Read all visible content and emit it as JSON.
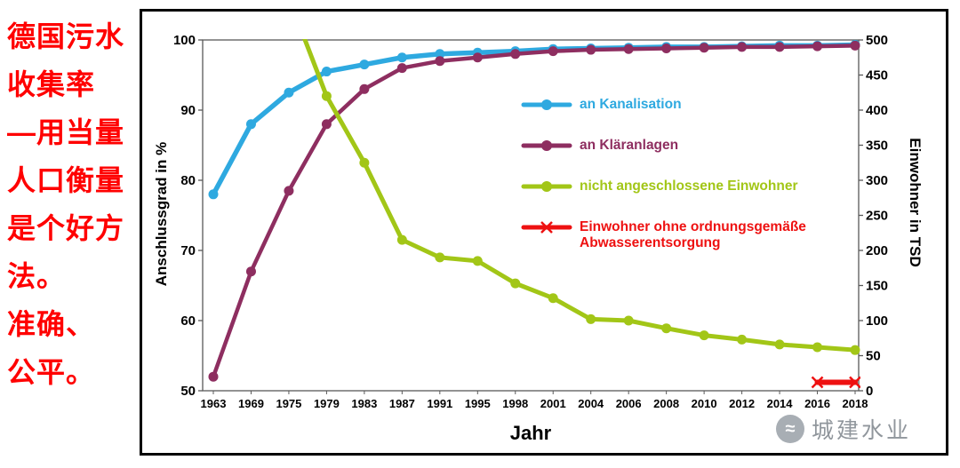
{
  "side_note": {
    "color": "#ff0000",
    "lines": [
      "德国污水",
      "收集率",
      "—用当量",
      "人口衡量",
      "是个好方",
      "法。",
      "准确、",
      "公平。"
    ]
  },
  "chart_data": {
    "type": "line",
    "title": "",
    "xlabel": "Jahr",
    "ylabel_left": "Anschlussgrad in %",
    "ylabel_right": "Einwohner in TSD",
    "grid": false,
    "legend_position": "inside-right",
    "categories": [
      "1963",
      "1969",
      "1975",
      "1979",
      "1983",
      "1987",
      "1991",
      "1995",
      "1998",
      "2001",
      "2004",
      "2006",
      "2008",
      "2010",
      "2012",
      "2014",
      "2016",
      "2018"
    ],
    "left_axis": {
      "min": 50,
      "max": 100,
      "ticks": [
        50,
        60,
        70,
        80,
        90,
        100
      ]
    },
    "right_axis": {
      "min": 0,
      "max": 500,
      "ticks": [
        0,
        50,
        100,
        150,
        200,
        250,
        300,
        350,
        400,
        450,
        500
      ]
    },
    "series": [
      {
        "name": "an Kanalisation",
        "axis": "left",
        "color": "#2ea9e0",
        "marker": "circle",
        "line_width": 5.5,
        "values": [
          78,
          88,
          92.5,
          95.5,
          96.5,
          97.5,
          98,
          98.2,
          98.4,
          98.7,
          98.8,
          98.9,
          99,
          99,
          99.1,
          99.2,
          99.2,
          99.3
        ]
      },
      {
        "name": "an Kläranlagen",
        "axis": "left",
        "color": "#8e2e60",
        "marker": "circle",
        "line_width": 4.5,
        "values": [
          52,
          67,
          78.5,
          88,
          93,
          96,
          97,
          97.5,
          98,
          98.4,
          98.6,
          98.7,
          98.8,
          98.9,
          99,
          99,
          99.1,
          99.2
        ]
      },
      {
        "name": "nicht angeschlossene Einwohner",
        "axis": "right",
        "color": "#a2c617",
        "marker": "circle",
        "line_width": 5,
        "values": [
          null,
          null,
          560,
          420,
          325,
          215,
          190,
          185,
          153,
          132,
          102,
          100,
          89,
          79,
          73,
          66,
          62,
          58
        ]
      },
      {
        "name": "Einwohner ohne ordnungsgemäße Abwasserentsorgung",
        "axis": "right",
        "color": "#ee1111",
        "marker": "x",
        "line_width": 6,
        "values": [
          null,
          null,
          null,
          null,
          null,
          null,
          null,
          null,
          null,
          null,
          null,
          null,
          null,
          null,
          null,
          null,
          12,
          12
        ]
      }
    ]
  },
  "watermark": {
    "logo_icon": "water-wave",
    "logo_glyph": "≈",
    "text": "城建水业"
  }
}
